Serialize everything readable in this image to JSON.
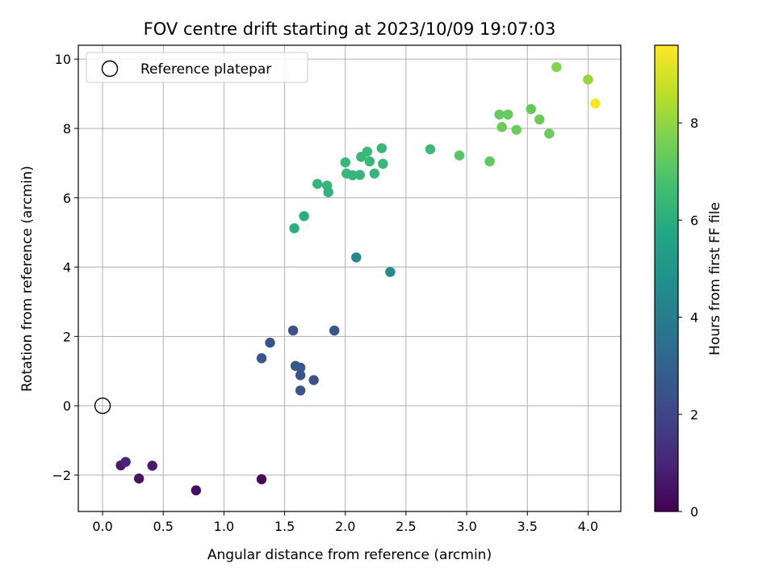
{
  "chart_data": {
    "type": "scatter",
    "title": "FOV centre drift starting at 2023/10/09 19:07:03",
    "xlabel": "Angular distance from reference (arcmin)",
    "ylabel": "Rotation from reference (arcmin)",
    "xlim": [
      -0.2,
      4.27
    ],
    "ylim": [
      -3.05,
      10.4
    ],
    "xticks": [
      "0.0",
      "0.5",
      "1.0",
      "1.5",
      "2.0",
      "2.5",
      "3.0",
      "3.5",
      "4.0"
    ],
    "yticks": [
      "−2",
      "0",
      "2",
      "4",
      "6",
      "8",
      "10"
    ],
    "grid": true,
    "legend": {
      "position": "top-left",
      "entries": [
        "Reference platepar"
      ]
    },
    "reference_point": {
      "x": 0.0,
      "y": 0.0
    },
    "colorbar": {
      "label": "Hours from first FF file",
      "range": [
        0,
        9.6
      ],
      "ticks": [
        "0",
        "2",
        "4",
        "6",
        "8"
      ],
      "colormap": "viridis"
    },
    "points": [
      {
        "x": 0.15,
        "y": -1.72,
        "c": 0.7
      },
      {
        "x": 0.19,
        "y": -1.62,
        "c": 1.0
      },
      {
        "x": 0.3,
        "y": -2.1,
        "c": 0.5
      },
      {
        "x": 0.41,
        "y": -1.73,
        "c": 0.7
      },
      {
        "x": 0.77,
        "y": -2.44,
        "c": 0.4
      },
      {
        "x": 1.31,
        "y": -2.12,
        "c": 0.2
      },
      {
        "x": 1.31,
        "y": 1.37,
        "c": 2.6
      },
      {
        "x": 1.38,
        "y": 1.82,
        "c": 2.5
      },
      {
        "x": 1.57,
        "y": 2.17,
        "c": 2.4
      },
      {
        "x": 1.59,
        "y": 1.15,
        "c": 2.7
      },
      {
        "x": 1.63,
        "y": 1.1,
        "c": 2.6
      },
      {
        "x": 1.63,
        "y": 0.88,
        "c": 2.5
      },
      {
        "x": 1.63,
        "y": 0.44,
        "c": 2.5
      },
      {
        "x": 1.74,
        "y": 0.74,
        "c": 2.4
      },
      {
        "x": 1.91,
        "y": 2.17,
        "c": 2.6
      },
      {
        "x": 2.09,
        "y": 4.28,
        "c": 4.5
      },
      {
        "x": 2.37,
        "y": 3.86,
        "c": 4.7
      },
      {
        "x": 1.58,
        "y": 5.12,
        "c": 6.0
      },
      {
        "x": 1.66,
        "y": 5.47,
        "c": 6.0
      },
      {
        "x": 1.77,
        "y": 6.4,
        "c": 6.3
      },
      {
        "x": 1.85,
        "y": 6.35,
        "c": 6.3
      },
      {
        "x": 1.86,
        "y": 6.16,
        "c": 6.2
      },
      {
        "x": 2.0,
        "y": 7.02,
        "c": 6.4
      },
      {
        "x": 2.01,
        "y": 6.7,
        "c": 6.4
      },
      {
        "x": 2.06,
        "y": 6.65,
        "c": 6.3
      },
      {
        "x": 2.12,
        "y": 6.66,
        "c": 6.3
      },
      {
        "x": 2.13,
        "y": 7.18,
        "c": 6.4
      },
      {
        "x": 2.18,
        "y": 7.33,
        "c": 6.5
      },
      {
        "x": 2.2,
        "y": 7.05,
        "c": 6.4
      },
      {
        "x": 2.24,
        "y": 6.7,
        "c": 6.3
      },
      {
        "x": 2.3,
        "y": 7.43,
        "c": 6.4
      },
      {
        "x": 2.31,
        "y": 6.98,
        "c": 6.4
      },
      {
        "x": 2.7,
        "y": 7.4,
        "c": 6.5
      },
      {
        "x": 2.94,
        "y": 7.22,
        "c": 7.1
      },
      {
        "x": 3.19,
        "y": 7.05,
        "c": 7.2
      },
      {
        "x": 3.27,
        "y": 8.4,
        "c": 7.3
      },
      {
        "x": 3.29,
        "y": 8.04,
        "c": 7.4
      },
      {
        "x": 3.34,
        "y": 8.4,
        "c": 7.3
      },
      {
        "x": 3.41,
        "y": 7.96,
        "c": 7.4
      },
      {
        "x": 3.53,
        "y": 8.56,
        "c": 7.3
      },
      {
        "x": 3.6,
        "y": 8.26,
        "c": 7.4
      },
      {
        "x": 3.68,
        "y": 7.85,
        "c": 7.4
      },
      {
        "x": 3.74,
        "y": 9.77,
        "c": 7.8
      },
      {
        "x": 4.0,
        "y": 9.41,
        "c": 8.1
      },
      {
        "x": 4.06,
        "y": 8.72,
        "c": 9.5
      }
    ]
  }
}
